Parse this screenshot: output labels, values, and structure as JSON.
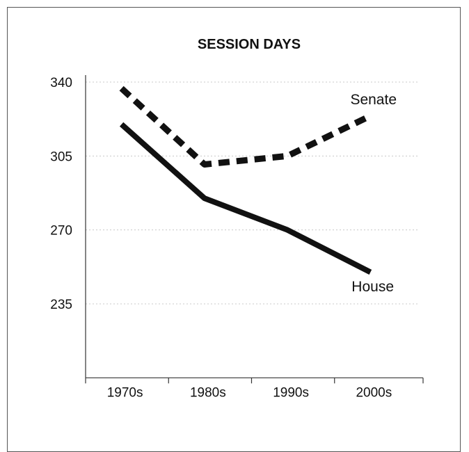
{
  "chart_data": {
    "type": "line",
    "title": "SESSION DAYS",
    "xlabel": "",
    "ylabel": "",
    "categories": [
      "1970s",
      "1980s",
      "1990s",
      "2000s"
    ],
    "yticks": [
      340,
      305,
      270,
      235
    ],
    "ylim": [
      200,
      340
    ],
    "grid": true,
    "series": [
      {
        "name": "Senate",
        "values": [
          337,
          301,
          305,
          324
        ],
        "style": "dashed",
        "color": "#111111"
      },
      {
        "name": "House",
        "values": [
          320,
          285,
          270,
          250
        ],
        "style": "solid",
        "color": "#111111"
      }
    ]
  }
}
